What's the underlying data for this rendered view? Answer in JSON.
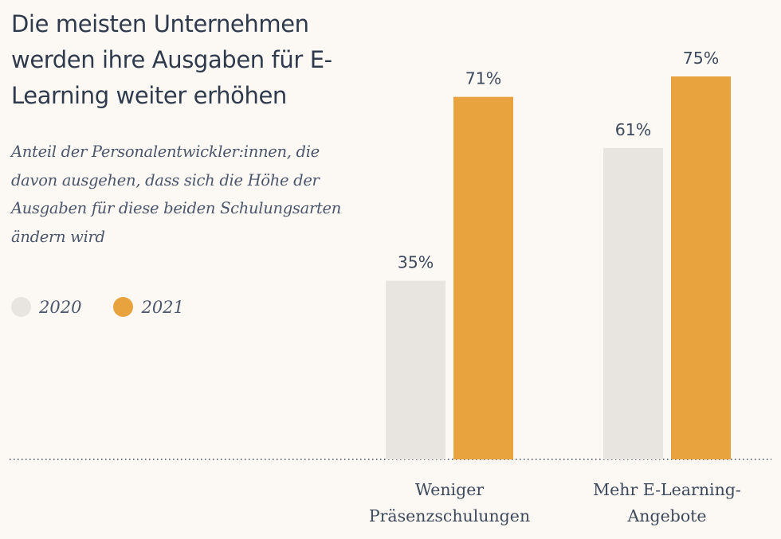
{
  "title": "Die meisten Unternehmen werden ihre Ausgaben für E-Learning weiter erhöhen",
  "subtitle": "Anteil der Personalentwickler:innen, die davon ausgehen, dass sich die Höhe der Ausgaben für diese beiden Schulungsarten ändern wird",
  "colors": {
    "background": "#fcf9f5",
    "series_2020": "#e8e5e0",
    "series_2021": "#e8a33e",
    "text": "#3e4a5c"
  },
  "chart_data": {
    "type": "bar",
    "title": "Die meisten Unternehmen werden ihre Ausgaben für E-Learning weiter erhöhen",
    "subtitle": "Anteil der Personalentwickler:innen, die davon ausgehen, dass sich die Höhe der Ausgaben für diese beiden Schulungsarten ändern wird",
    "xlabel": "",
    "ylabel": "",
    "ylim": [
      0,
      75
    ],
    "categories": [
      [
        "Weniger",
        "Präsenzschulungen"
      ],
      [
        "Mehr E-Learning-",
        "Angebote"
      ]
    ],
    "series": [
      {
        "name": "2020",
        "color": "#e8e5e0",
        "values": [
          35,
          61
        ],
        "labels": [
          "35%",
          "61%"
        ]
      },
      {
        "name": "2021",
        "color": "#e8a33e",
        "values": [
          71,
          75
        ],
        "labels": [
          "71%",
          "75%"
        ]
      }
    ],
    "legend": "left",
    "grid": false,
    "baseline": "dotted"
  }
}
